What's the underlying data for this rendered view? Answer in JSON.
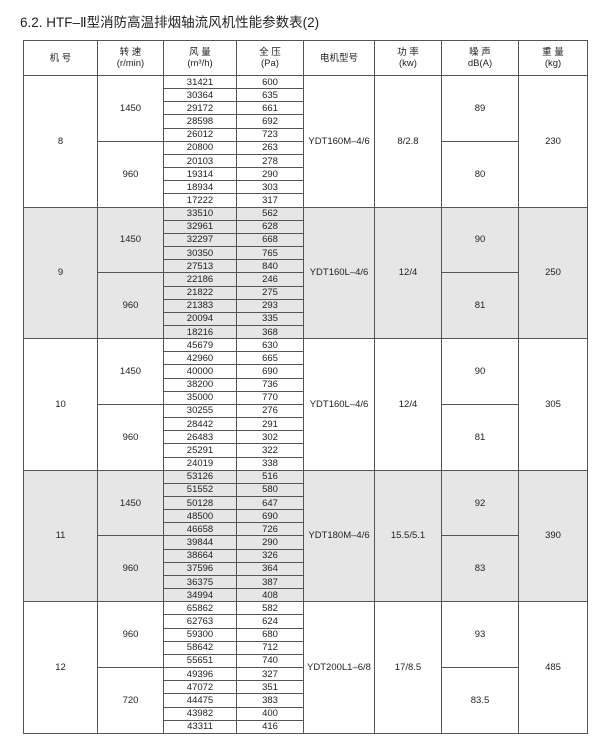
{
  "title": "6.2. HTF–Ⅱ型消防高温排烟轴流风机性能参数表(2)",
  "table": {
    "header": [
      {
        "name": "机 号"
      },
      {
        "name": "转 速",
        "unit": "(r/min)"
      },
      {
        "name": "风 量",
        "unit": "(m³/h)"
      },
      {
        "name": "全 压",
        "unit": "(Pa)"
      },
      {
        "name": "电机型号"
      },
      {
        "name": "功 率",
        "unit": "(kw)"
      },
      {
        "name": "噪 声",
        "unit": "dB(A)"
      },
      {
        "name": "重 量",
        "unit": "(kg)"
      }
    ],
    "groups": [
      {
        "machine": "8",
        "motor": "YDT160M–4/6",
        "power": "8/2.8",
        "weight": "230",
        "speeds": [
          {
            "speed": "1450",
            "noise": "89",
            "rows": [
              [
                "31421",
                "600"
              ],
              [
                "30364",
                "635"
              ],
              [
                "29172",
                "661"
              ],
              [
                "28598",
                "692"
              ],
              [
                "26012",
                "723"
              ]
            ]
          },
          {
            "speed": "960",
            "noise": "80",
            "rows": [
              [
                "20800",
                "263"
              ],
              [
                "20103",
                "278"
              ],
              [
                "19314",
                "290"
              ],
              [
                "18934",
                "303"
              ],
              [
                "17222",
                "317"
              ]
            ]
          }
        ]
      },
      {
        "machine": "9",
        "motor": "YDT160L–4/6",
        "power": "12/4",
        "weight": "250",
        "speeds": [
          {
            "speed": "1450",
            "noise": "90",
            "rows": [
              [
                "33510",
                "562"
              ],
              [
                "32961",
                "628"
              ],
              [
                "32297",
                "668"
              ],
              [
                "30350",
                "765"
              ],
              [
                "27513",
                "840"
              ]
            ]
          },
          {
            "speed": "960",
            "noise": "81",
            "rows": [
              [
                "22186",
                "246"
              ],
              [
                "21822",
                "275"
              ],
              [
                "21383",
                "293"
              ],
              [
                "20094",
                "335"
              ],
              [
                "18216",
                "368"
              ]
            ]
          }
        ]
      },
      {
        "machine": "10",
        "motor": "YDT160L–4/6",
        "power": "12/4",
        "weight": "305",
        "speeds": [
          {
            "speed": "1450",
            "noise": "90",
            "rows": [
              [
                "45679",
                "630"
              ],
              [
                "42960",
                "665"
              ],
              [
                "40000",
                "690"
              ],
              [
                "38200",
                "736"
              ],
              [
                "35000",
                "770"
              ]
            ]
          },
          {
            "speed": "960",
            "noise": "81",
            "rows": [
              [
                "30255",
                "276"
              ],
              [
                "28442",
                "291"
              ],
              [
                "26483",
                "302"
              ],
              [
                "25291",
                "322"
              ],
              [
                "24019",
                "338"
              ]
            ]
          }
        ]
      },
      {
        "machine": "11",
        "motor": "YDT180M–4/6",
        "power": "15.5/5.1",
        "weight": "390",
        "speeds": [
          {
            "speed": "1450",
            "noise": "92",
            "rows": [
              [
                "53126",
                "516"
              ],
              [
                "51552",
                "580"
              ],
              [
                "50128",
                "647"
              ],
              [
                "48500",
                "690"
              ],
              [
                "46658",
                "726"
              ]
            ]
          },
          {
            "speed": "960",
            "noise": "83",
            "rows": [
              [
                "39844",
                "290"
              ],
              [
                "38664",
                "326"
              ],
              [
                "37596",
                "364"
              ],
              [
                "36375",
                "387"
              ],
              [
                "34994",
                "408"
              ]
            ]
          }
        ]
      },
      {
        "machine": "12",
        "motor": "YDT200L1–6/8",
        "power": "17/8.5",
        "weight": "485",
        "speeds": [
          {
            "speed": "960",
            "noise": "93",
            "rows": [
              [
                "65862",
                "582"
              ],
              [
                "62763",
                "624"
              ],
              [
                "59300",
                "680"
              ],
              [
                "58642",
                "712"
              ],
              [
                "55651",
                "740"
              ]
            ]
          },
          {
            "speed": "720",
            "noise": "83.5",
            "rows": [
              [
                "49396",
                "327"
              ],
              [
                "47072",
                "351"
              ],
              [
                "44475",
                "383"
              ],
              [
                "43982",
                "400"
              ],
              [
                "43311",
                "416"
              ]
            ]
          }
        ]
      }
    ]
  }
}
